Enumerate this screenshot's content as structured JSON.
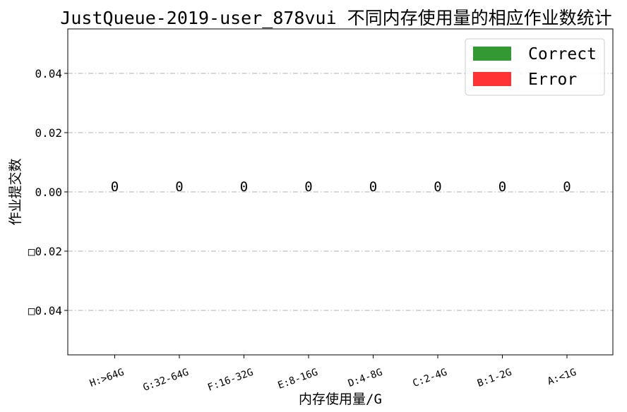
{
  "chart_data": {
    "type": "bar",
    "title": "JustQueue-2019-user_878vui 不同内存使用量的相应作业数统计",
    "xlabel": "内存使用量/G",
    "ylabel": "作业提交数",
    "categories": [
      "H:>64G",
      "G:32-64G",
      "F:16-32G",
      "E:8-16G",
      "D:4-8G",
      "C:2-4G",
      "B:1-2G",
      "A:<1G"
    ],
    "series": [
      {
        "name": "Correct",
        "color": "#339933",
        "values": [
          0,
          0,
          0,
          0,
          0,
          0,
          0,
          0
        ]
      },
      {
        "name": "Error",
        "color": "#ff3333",
        "values": [
          0,
          0,
          0,
          0,
          0,
          0,
          0,
          0
        ]
      }
    ],
    "totals": [
      "0",
      "0",
      "0",
      "0",
      "0",
      "0",
      "0",
      "0"
    ],
    "yticks": [
      0.04,
      0.02,
      0.0,
      -0.02,
      -0.04
    ],
    "ytick_labels": [
      "0.04",
      "0.02",
      "0.00",
      "□0.02",
      "□0.04"
    ],
    "ylim": [
      -0.055,
      0.055
    ],
    "grid": "y dash-dot",
    "legend_position": "top-right"
  }
}
